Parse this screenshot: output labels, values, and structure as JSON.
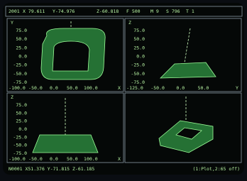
{
  "status_bar": {
    "fields": [
      "2001",
      "X 79.611",
      "Y-74.976",
      "Z-60.818",
      "F 500",
      "M 9",
      "S 796",
      "T 1"
    ]
  },
  "panels": [
    {
      "axis_label": "Y",
      "y_ticks": [
        "75.0",
        "50.0",
        "25.0",
        "0.0",
        "-25.0",
        "-50.0",
        "-75.0"
      ],
      "x_ticks": [
        "-100.0",
        "-50.0",
        "0.0",
        "50.0",
        "100.0"
      ],
      "x_axis_label": "X"
    },
    {
      "axis_label": "Z",
      "y_ticks": [
        "75.0",
        "50.0",
        "25.0",
        "0.0",
        "-25.0",
        "-50.0",
        "-75.0"
      ],
      "x_ticks": [
        "-125.0",
        "-50.0",
        "0.0",
        "50.0"
      ],
      "x_axis_label": "Y"
    },
    {
      "axis_label": "Z",
      "y_ticks": [
        "75.0",
        "50.0",
        "25.0",
        "0.0",
        "-25.0",
        "-50.0",
        "-75.0"
      ],
      "x_ticks": [
        "-100.0",
        "-50.0",
        "0.0",
        "50.0",
        "100.0"
      ],
      "x_axis_label": "X"
    }
  ],
  "footer": {
    "position": "N0001 X51.376 Y-71.815 Z-61.185",
    "hint": "(1:Plot,2:65 off)"
  }
}
